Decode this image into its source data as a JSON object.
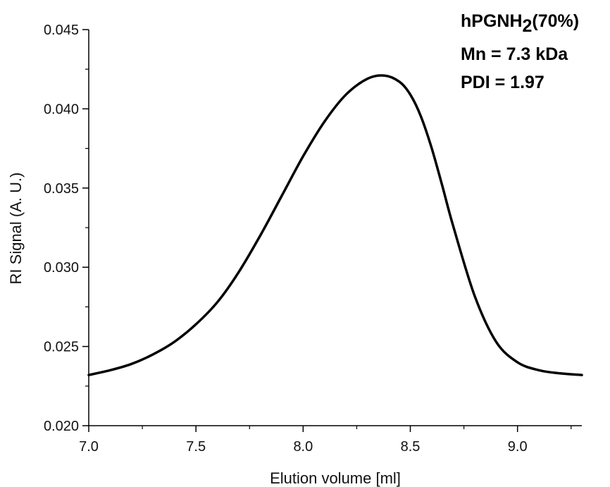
{
  "chart_data": {
    "type": "line",
    "title": "",
    "xlabel": "Elution volume [ml]",
    "ylabel": "RI Signal (A. U.)",
    "xlim": [
      7.0,
      9.3
    ],
    "ylim": [
      0.02,
      0.045
    ],
    "x_ticks": [
      "7.0",
      "7.5",
      "8.0",
      "8.5",
      "9.0"
    ],
    "y_ticks": [
      "0.020",
      "0.025",
      "0.030",
      "0.035",
      "0.040",
      "0.045"
    ],
    "grid": false,
    "series": [
      {
        "color": "#000000",
        "x": [
          7.0,
          7.1,
          7.2,
          7.3,
          7.4,
          7.5,
          7.6,
          7.7,
          7.8,
          7.9,
          8.0,
          8.1,
          8.2,
          8.3,
          8.38,
          8.45,
          8.5,
          8.55,
          8.6,
          8.65,
          8.7,
          8.8,
          8.9,
          9.0,
          9.1,
          9.2,
          9.3
        ],
        "y": [
          0.0232,
          0.0235,
          0.0239,
          0.0245,
          0.0253,
          0.0264,
          0.0278,
          0.0297,
          0.032,
          0.0345,
          0.037,
          0.0392,
          0.0409,
          0.0419,
          0.0421,
          0.0417,
          0.0409,
          0.0395,
          0.0375,
          0.0351,
          0.0326,
          0.0282,
          0.0253,
          0.024,
          0.0235,
          0.0233,
          0.0232
        ]
      }
    ],
    "annotations": {
      "sample_prefix": "hPGNH",
      "sample_subscript": "2",
      "sample_suffix": "(70%)",
      "mn": "Mn = 7.3 kDa",
      "pdi": "PDI = 1.97"
    }
  }
}
